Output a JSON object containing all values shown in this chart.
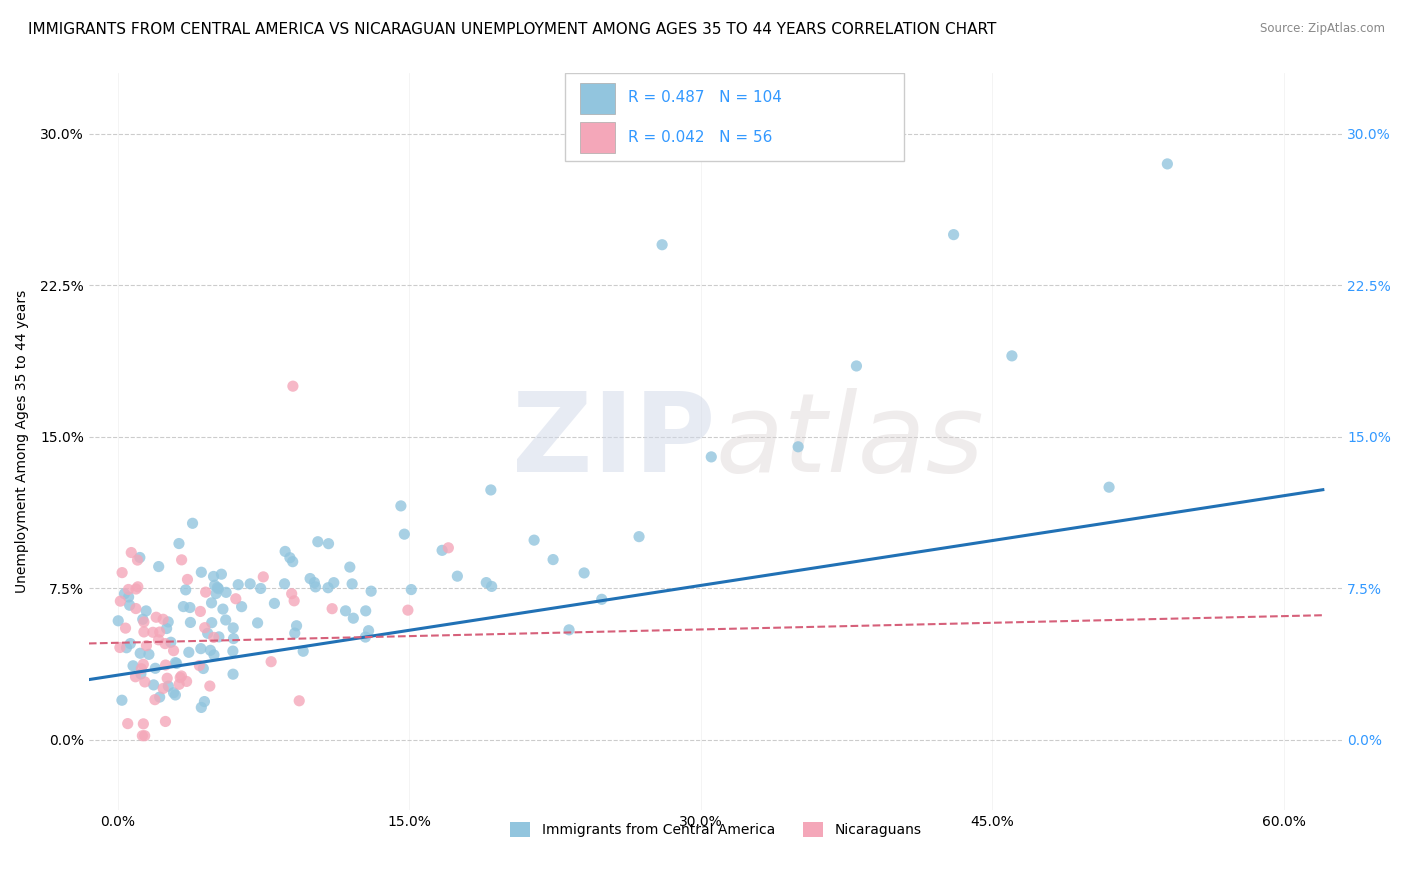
{
  "title": "IMMIGRANTS FROM CENTRAL AMERICA VS NICARAGUAN UNEMPLOYMENT AMONG AGES 35 TO 44 YEARS CORRELATION CHART",
  "source": "Source: ZipAtlas.com",
  "ylabel": "Unemployment Among Ages 35 to 44 years",
  "xlabel_ticks": [
    "0.0%",
    "15.0%",
    "30.0%",
    "45.0%",
    "60.0%"
  ],
  "xlabel_vals": [
    0.0,
    15.0,
    30.0,
    45.0,
    60.0
  ],
  "ylabel_ticks": [
    "0.0%",
    "7.5%",
    "15.0%",
    "22.5%",
    "30.0%"
  ],
  "ylabel_vals": [
    0.0,
    7.5,
    15.0,
    22.5,
    30.0
  ],
  "xlim": [
    -1.5,
    63
  ],
  "ylim": [
    -3.5,
    33
  ],
  "blue_R": 0.487,
  "blue_N": 104,
  "pink_R": 0.042,
  "pink_N": 56,
  "blue_color": "#92c5de",
  "pink_color": "#f4a7b9",
  "blue_line_color": "#2171b5",
  "pink_line_color": "#d6607a",
  "legend_label_blue": "Immigrants from Central America",
  "legend_label_pink": "Nicaraguans",
  "watermark_zip": "ZIP",
  "watermark_atlas": "atlas",
  "background_color": "#ffffff",
  "grid_color": "#cccccc",
  "title_fontsize": 11,
  "axis_fontsize": 10,
  "right_axis_color": "#3399ff"
}
